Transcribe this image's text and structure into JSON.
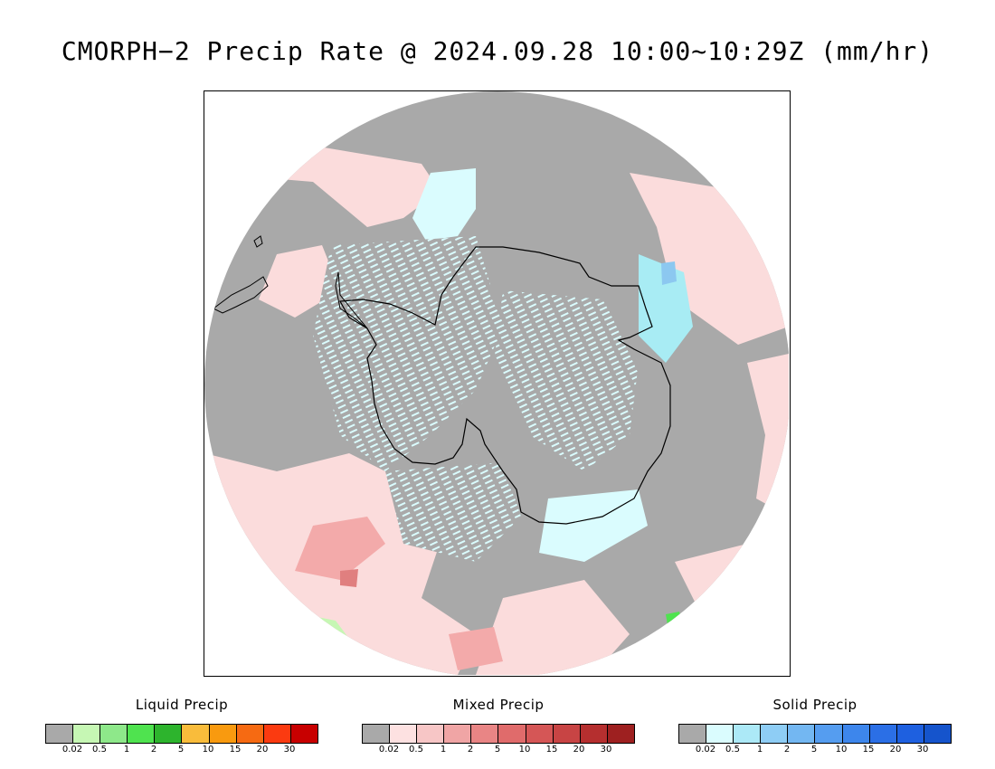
{
  "title": "CMORPH−2 Precip Rate @ 2024.09.28 10:00~10:29Z (mm/hr)",
  "map": {
    "projection": "south-polar-stereographic",
    "colors": {
      "no_precip": "#a9a9a9",
      "ocean_mixed_light": "#fbdcdc",
      "ocean_mixed_med": "#f3aaaa",
      "ocean_mixed_dark": "#e07f7f",
      "solid_light": "#dafcfe",
      "solid_med": "#a8ecf4",
      "solid_blue": "#8cc8f0",
      "liquid_light": "#c6f7b4",
      "liquid_green": "#4fe34f",
      "coastline": "#000000"
    }
  },
  "legends": [
    {
      "name": "liquid",
      "title": "Liquid Precip",
      "colors": [
        "#a9a9a9",
        "#c6f7b4",
        "#8ee88a",
        "#4fe34f",
        "#2db42d",
        "#f9bc3b",
        "#f99a0f",
        "#f66a12",
        "#fb3a10",
        "#c80000"
      ],
      "ticks": [
        "0.02",
        "0.5",
        "1",
        "2",
        "5",
        "10",
        "15",
        "20",
        "30"
      ]
    },
    {
      "name": "mixed",
      "title": "Mixed Precip",
      "colors": [
        "#a9a9a9",
        "#fde1e1",
        "#f7c6c6",
        "#f0a5a5",
        "#e98585",
        "#e06b6b",
        "#d55656",
        "#c84444",
        "#b52f2f",
        "#9e2020"
      ],
      "ticks": [
        "0.02",
        "0.5",
        "1",
        "2",
        "5",
        "10",
        "15",
        "20",
        "30"
      ]
    },
    {
      "name": "solid",
      "title": "Solid Precip",
      "colors": [
        "#a9a9a9",
        "#dafcfe",
        "#ace9f7",
        "#8ecdf5",
        "#73b7f2",
        "#559df0",
        "#3d86ec",
        "#2b6fe6",
        "#1e60e0",
        "#1554cc"
      ],
      "ticks": [
        "0.02",
        "0.5",
        "1",
        "2",
        "5",
        "10",
        "15",
        "20",
        "30"
      ]
    }
  ]
}
